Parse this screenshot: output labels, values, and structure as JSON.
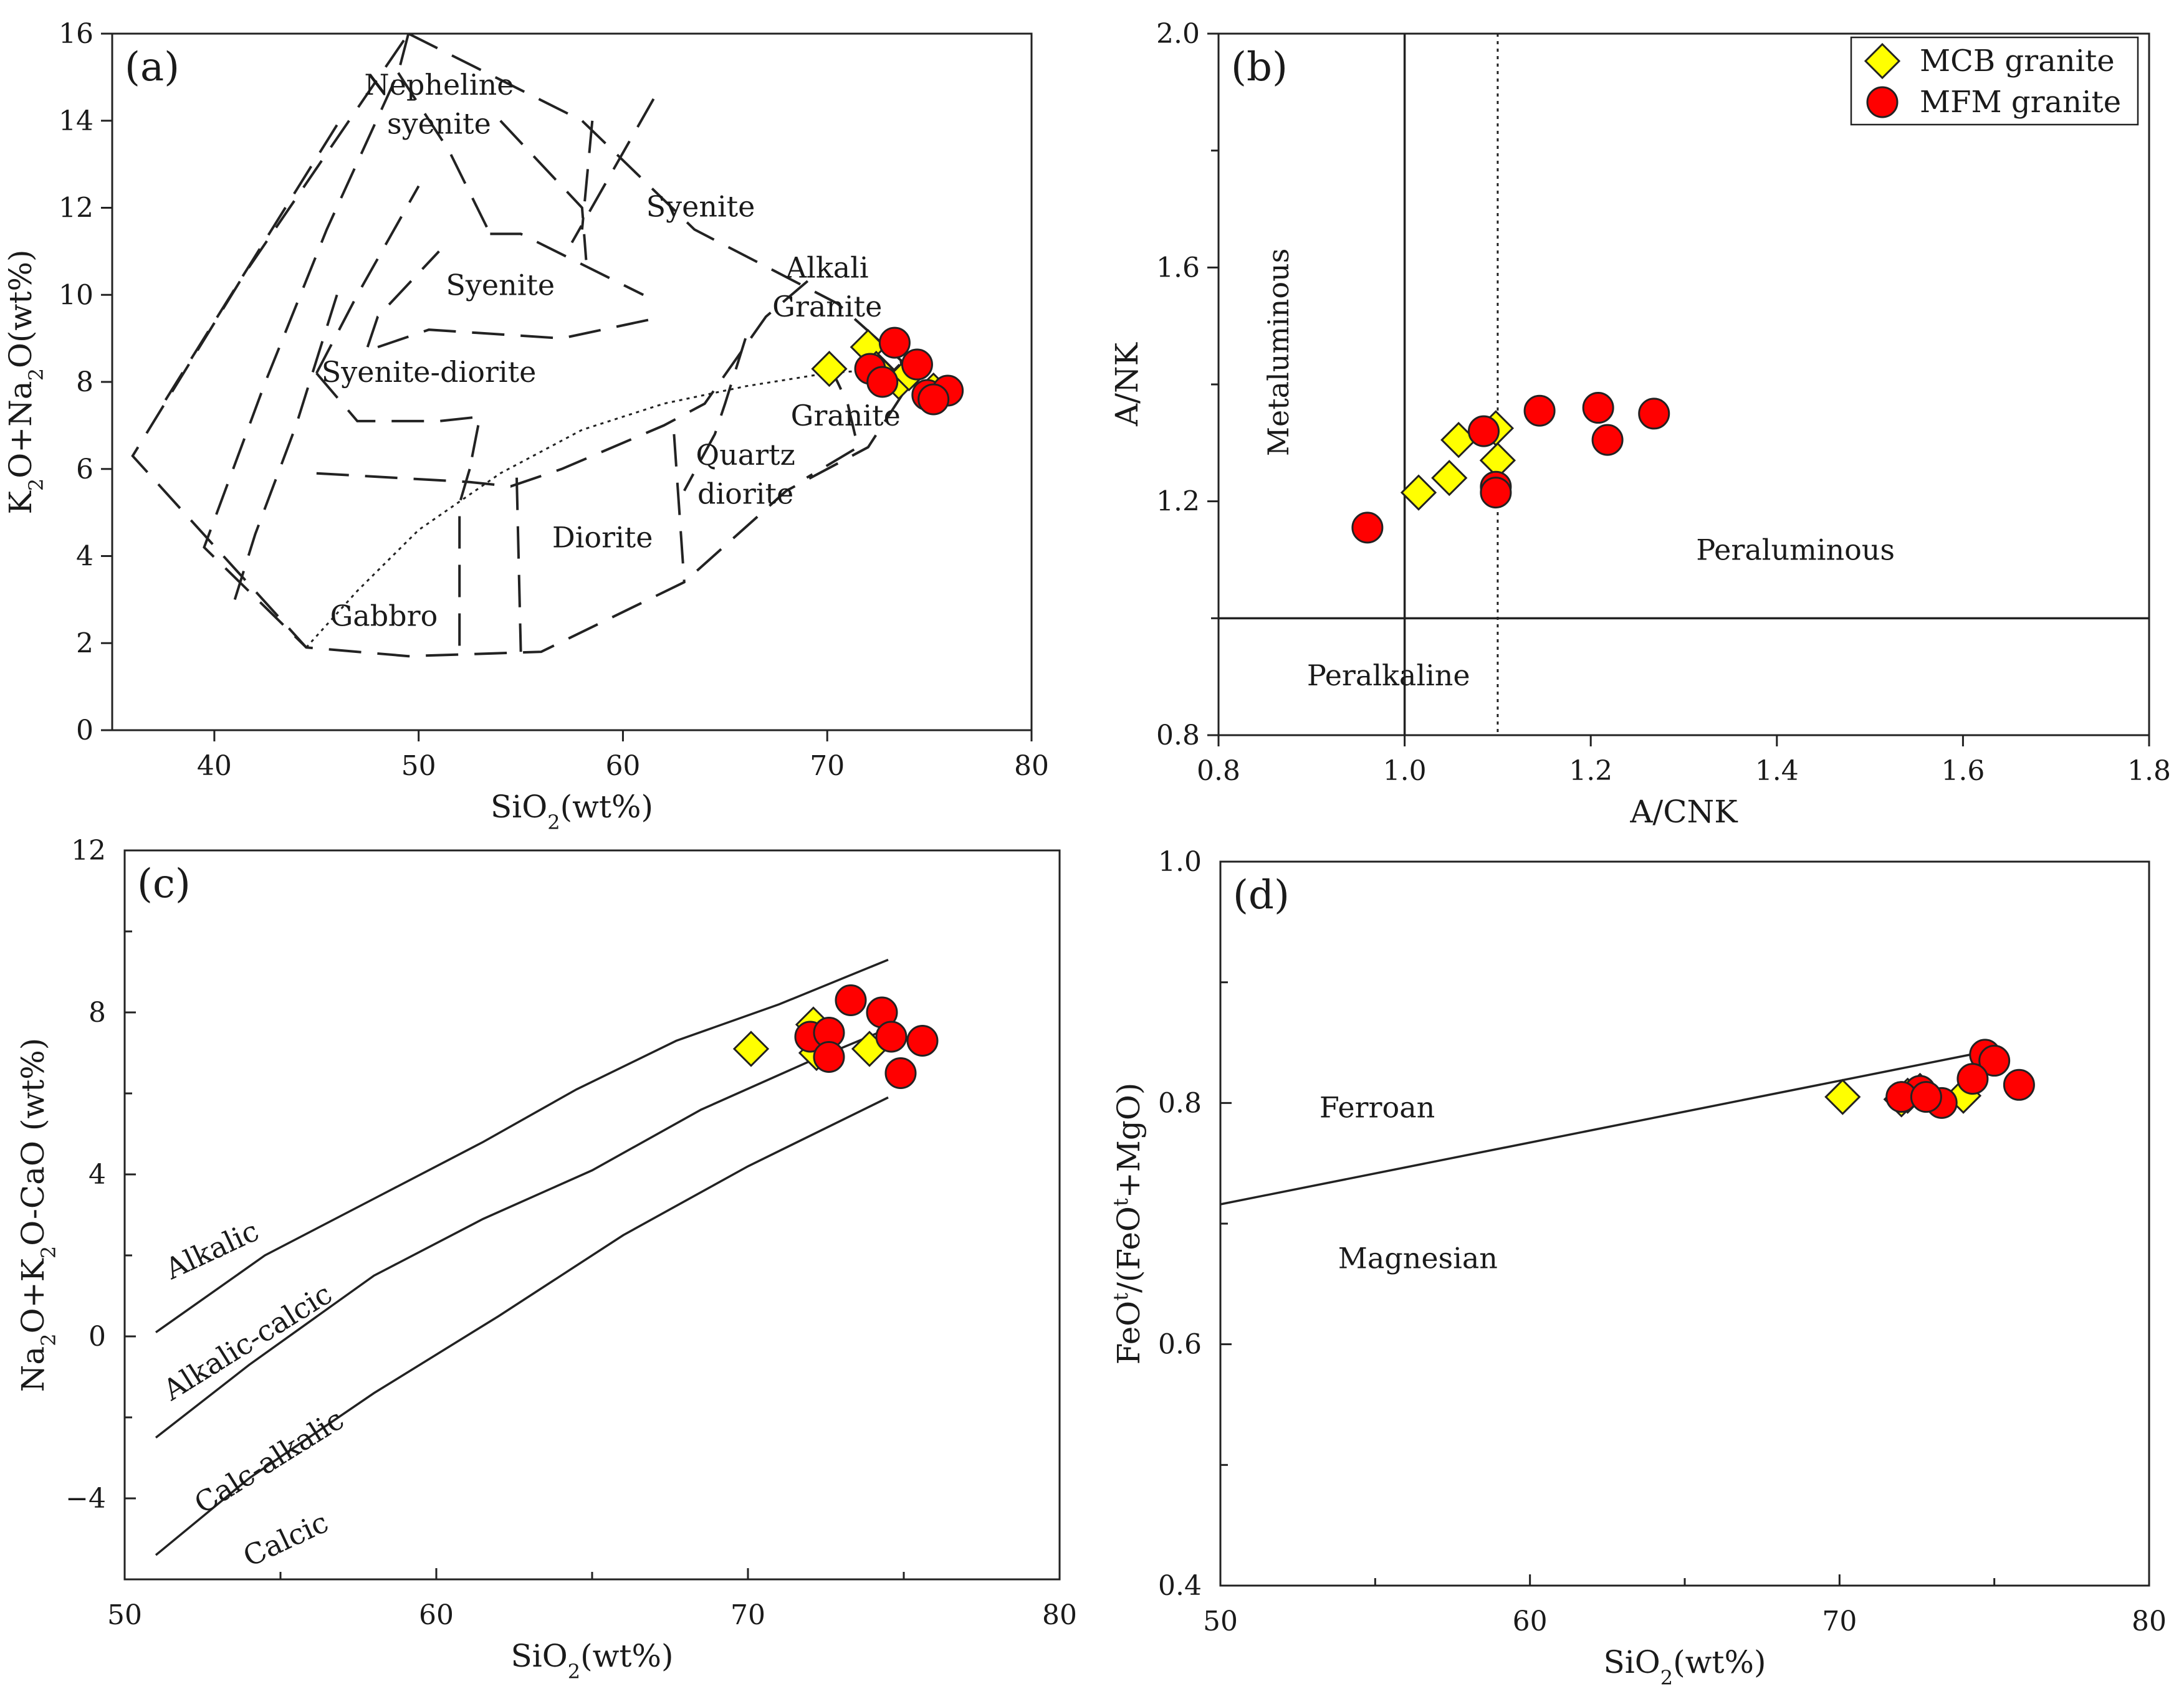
{
  "chart_data": [
    {
      "id": "a",
      "type": "scatter",
      "panel_label": "(a)",
      "xlabel_parts": [
        "SiO",
        "2",
        "(wt%)"
      ],
      "ylabel_parts": [
        "K",
        "2",
        "O+Na",
        "2",
        "O(wt%)"
      ],
      "xlim": [
        35,
        80
      ],
      "ylim": [
        0,
        16
      ],
      "xticks": [
        40,
        50,
        60,
        70,
        80
      ],
      "yticks": [
        0,
        2,
        4,
        6,
        8,
        10,
        12,
        14,
        16
      ],
      "fields": [
        {
          "name": "Nepheline",
          "x": 51.0,
          "y": 14.6
        },
        {
          "name": "syenite",
          "x": 51.0,
          "y": 13.7
        },
        {
          "name": "Syenite",
          "x": 63.8,
          "y": 11.8
        },
        {
          "name": "Syenite",
          "x": 54.0,
          "y": 10.0
        },
        {
          "name": "Alkali",
          "x": 70.0,
          "y": 10.4
        },
        {
          "name": "Granite",
          "x": 70.0,
          "y": 9.5
        },
        {
          "name": "Syenite-diorite",
          "x": 50.5,
          "y": 8.0
        },
        {
          "name": "Granite",
          "x": 70.9,
          "y": 7.0
        },
        {
          "name": "Quartz",
          "x": 66.0,
          "y": 6.1
        },
        {
          "name": "diorite",
          "x": 66.0,
          "y": 5.2
        },
        {
          "name": "Diorite",
          "x": 59.0,
          "y": 4.2
        },
        {
          "name": "Gabbro",
          "x": 48.3,
          "y": 2.4
        }
      ],
      "boundaries": [
        [
          [
            49.5,
            16.0
          ],
          [
            58.0,
            14.0
          ],
          [
            63.5,
            11.5
          ],
          [
            70.5,
            9.8
          ],
          [
            73.6,
            8.5
          ],
          [
            73.8,
            7.8
          ],
          [
            72.0,
            6.5
          ],
          [
            68.0,
            5.5
          ],
          [
            63.0,
            3.4
          ],
          [
            56.0,
            1.8
          ],
          [
            49.5,
            1.7
          ],
          [
            44.5,
            1.9
          ],
          [
            36.0,
            6.3
          ],
          [
            41.5,
            10.5
          ],
          [
            49.5,
            16.0
          ]
        ],
        [
          [
            49.5,
            16.0
          ],
          [
            49.0,
            15.1
          ],
          [
            45.5,
            11.5
          ],
          [
            42.5,
            8.0
          ],
          [
            39.5,
            4.2
          ],
          [
            44.5,
            1.9
          ]
        ],
        [
          [
            49.0,
            15.1
          ],
          [
            51.5,
            13.3
          ],
          [
            53.5,
            11.4
          ]
        ],
        [
          [
            46.0,
            13.9
          ],
          [
            37.5,
            7.5
          ]
        ],
        [
          [
            54.0,
            14.0
          ],
          [
            58.0,
            12.0
          ],
          [
            58.2,
            10.8
          ]
        ],
        [
          [
            58.5,
            14.0
          ],
          [
            58.0,
            11.5
          ]
        ],
        [
          [
            61.5,
            14.5
          ],
          [
            57.5,
            11.2
          ]
        ],
        [
          [
            53.5,
            11.4
          ],
          [
            55.0,
            11.4
          ],
          [
            61.0,
            10.0
          ]
        ],
        [
          [
            45.0,
            8.2
          ],
          [
            47.0,
            10.0
          ],
          [
            50.0,
            12.5
          ]
        ],
        [
          [
            47.5,
            8.8
          ],
          [
            48.0,
            9.5
          ],
          [
            51.0,
            11.0
          ]
        ],
        [
          [
            48.0,
            8.8
          ],
          [
            50.5,
            9.2
          ],
          [
            57.0,
            9.0
          ],
          [
            62.0,
            9.5
          ]
        ],
        [
          [
            46.0,
            10.0
          ],
          [
            44.0,
            7.0
          ],
          [
            42.0,
            4.5
          ],
          [
            41.0,
            3.0
          ]
        ],
        [
          [
            45.0,
            8.2
          ],
          [
            47.0,
            7.1
          ],
          [
            51.0,
            7.1
          ],
          [
            53.0,
            7.2
          ],
          [
            52.5,
            6.0
          ]
        ],
        [
          [
            45.0,
            5.9
          ],
          [
            52.5,
            5.7
          ],
          [
            54.5,
            5.6
          ],
          [
            57.0,
            6.0
          ],
          [
            62.0,
            7.0
          ],
          [
            64.0,
            7.5
          ],
          [
            67.0,
            9.5
          ],
          [
            69.5,
            10.5
          ]
        ],
        [
          [
            52.5,
            6.0
          ],
          [
            52.0,
            5.2
          ],
          [
            52.0,
            1.7
          ]
        ],
        [
          [
            54.8,
            5.8
          ],
          [
            55.0,
            1.8
          ]
        ],
        [
          [
            62.5,
            6.8
          ],
          [
            63.0,
            3.4
          ]
        ],
        [
          [
            66.0,
            9.0
          ],
          [
            65.0,
            7.5
          ],
          [
            64.5,
            6.8
          ],
          [
            63.0,
            5.5
          ]
        ],
        [
          [
            70.0,
            8.5
          ],
          [
            71.0,
            7.5
          ],
          [
            71.5,
            6.5
          ],
          [
            69.0,
            5.8
          ]
        ]
      ],
      "divider": [
        [
          44.5,
          1.9
        ],
        [
          47.0,
          3.2
        ],
        [
          50.0,
          4.6
        ],
        [
          54.0,
          5.9
        ],
        [
          58.0,
          6.9
        ],
        [
          62.0,
          7.5
        ],
        [
          66.0,
          7.9
        ],
        [
          70.0,
          8.2
        ],
        [
          73.0,
          8.3
        ]
      ],
      "series": [
        {
          "name": "MCB granite",
          "marker": "diamond",
          "color": "#ffff00",
          "points": [
            [
              70.1,
              8.3
            ],
            [
              72.0,
              8.8
            ],
            [
              72.4,
              8.3
            ],
            [
              72.8,
              8.1
            ],
            [
              73.5,
              8.0
            ],
            [
              74.0,
              8.2
            ],
            [
              75.2,
              7.8
            ]
          ]
        },
        {
          "name": "MFM granite",
          "marker": "circle",
          "color": "#ff0000",
          "points": [
            [
              73.3,
              8.9
            ],
            [
              72.1,
              8.3
            ],
            [
              72.7,
              8.0
            ],
            [
              74.4,
              8.4
            ],
            [
              74.9,
              7.7
            ],
            [
              75.9,
              7.8
            ],
            [
              75.2,
              7.6
            ]
          ]
        }
      ]
    },
    {
      "id": "b",
      "type": "scatter",
      "panel_label": "(b)",
      "xlabel_parts": [
        "A/CNK"
      ],
      "ylabel_parts": [
        "A/NK"
      ],
      "xlim": [
        0.8,
        1.8
      ],
      "ylim": [
        0.8,
        2.0
      ],
      "xticks": [
        "0.8",
        "1.0",
        "1.2",
        "1.4",
        "1.6",
        "1.8"
      ],
      "yticks": [
        "0.8",
        "1.2",
        "1.6",
        "2.0"
      ],
      "legend_position": "top-right",
      "fields": [
        {
          "name": "Metaluminous",
          "x": 0.875,
          "y": 1.455,
          "rotate": true
        },
        {
          "name": "Peraluminous",
          "x": 1.42,
          "y": 1.1
        },
        {
          "name": "Peralkaline",
          "x": 0.895,
          "y": 0.885
        }
      ],
      "lines": {
        "vertical_solid": 1.0,
        "vertical_dotted": 1.1,
        "horizontal_solid": 1.0
      },
      "series": [
        {
          "name": "MCB granite",
          "marker": "diamond",
          "color": "#ffff00",
          "points": [
            [
              1.015,
              1.215
            ],
            [
              1.048,
              1.24
            ],
            [
              1.058,
              1.305
            ],
            [
              1.098,
              1.325
            ],
            [
              1.1,
              1.27
            ]
          ]
        },
        {
          "name": "MFM granite",
          "marker": "circle",
          "color": "#ff0000",
          "points": [
            [
              0.96,
              1.155
            ],
            [
              1.085,
              1.32
            ],
            [
              1.098,
              1.225
            ],
            [
              1.098,
              1.215
            ],
            [
              1.145,
              1.355
            ],
            [
              1.208,
              1.36
            ],
            [
              1.218,
              1.305
            ],
            [
              1.268,
              1.35
            ]
          ]
        }
      ]
    },
    {
      "id": "c",
      "type": "scatter",
      "panel_label": "(c)",
      "xlabel_parts": [
        "SiO",
        "2",
        "(wt%)"
      ],
      "ylabel_parts": [
        "Na",
        "2",
        "O+K",
        "2",
        "O-CaO (wt%)"
      ],
      "xlim": [
        50,
        80
      ],
      "ylim": [
        -6,
        12
      ],
      "xticks": [
        50,
        60,
        70,
        80
      ],
      "yticks": [
        -4,
        0,
        4,
        8,
        12
      ],
      "fields": [
        {
          "name": "Alkalic",
          "x": 51.5,
          "y": 1.4,
          "angle": -25
        },
        {
          "name": "Alkalic-calcic",
          "x": 51.5,
          "y": -1.6,
          "angle": -32
        },
        {
          "name": "Calc-alkalic",
          "x": 52.5,
          "y": -4.4,
          "angle": -32
        },
        {
          "name": "Calcic",
          "x": 54.0,
          "y": -5.7,
          "angle": -25
        }
      ],
      "boundaries": [
        [
          [
            51.0,
            0.1
          ],
          [
            54.5,
            2.0
          ],
          [
            58.0,
            3.4
          ],
          [
            61.5,
            4.8
          ],
          [
            64.5,
            6.1
          ],
          [
            67.7,
            7.3
          ],
          [
            71.0,
            8.2
          ],
          [
            74.5,
            9.3
          ]
        ],
        [
          [
            51.0,
            -2.5
          ],
          [
            54.0,
            -0.7
          ],
          [
            58.0,
            1.5
          ],
          [
            61.5,
            2.9
          ],
          [
            65.0,
            4.1
          ],
          [
            68.5,
            5.6
          ],
          [
            72.0,
            6.8
          ],
          [
            74.5,
            7.6
          ]
        ],
        [
          [
            51.0,
            -5.4
          ],
          [
            54.0,
            -3.5
          ],
          [
            58.0,
            -1.4
          ],
          [
            62.0,
            0.5
          ],
          [
            66.0,
            2.5
          ],
          [
            70.0,
            4.2
          ],
          [
            74.5,
            5.9
          ]
        ]
      ],
      "series": [
        {
          "name": "MCB granite",
          "marker": "diamond",
          "color": "#ffff00",
          "points": [
            [
              70.1,
              7.1
            ],
            [
              72.1,
              7.7
            ],
            [
              72.4,
              7.4
            ],
            [
              72.2,
              7.0
            ],
            [
              73.9,
              7.1
            ]
          ]
        },
        {
          "name": "MFM granite",
          "marker": "circle",
          "color": "#ff0000",
          "points": [
            [
              73.3,
              8.3
            ],
            [
              74.3,
              8.0
            ],
            [
              72.0,
              7.4
            ],
            [
              72.6,
              7.5
            ],
            [
              72.6,
              6.9
            ],
            [
              74.6,
              7.4
            ],
            [
              75.6,
              7.3
            ],
            [
              74.9,
              6.5
            ]
          ]
        }
      ]
    },
    {
      "id": "d",
      "type": "scatter",
      "panel_label": "(d)",
      "xlabel_parts": [
        "SiO",
        "2",
        "(wt%)"
      ],
      "ylabel_parts": [
        "FeO",
        "t",
        "/(FeO",
        "t",
        "+MgO)"
      ],
      "xlim": [
        50,
        80
      ],
      "ylim": [
        0.4,
        1.0
      ],
      "xticks": [
        50,
        60,
        70,
        80
      ],
      "yticks": [
        "0.4",
        "0.6",
        "0.8",
        "1.0"
      ],
      "fields": [
        {
          "name": "Ferroan",
          "x": 53.2,
          "y": 0.788
        },
        {
          "name": "Magnesian",
          "x": 53.8,
          "y": 0.663
        }
      ],
      "boundaries": [
        [
          [
            50.0,
            0.716
          ],
          [
            75.0,
            0.844
          ]
        ]
      ],
      "series": [
        {
          "name": "MCB granite",
          "marker": "diamond",
          "color": "#ffff00",
          "points": [
            [
              70.1,
              0.805
            ],
            [
              72.0,
              0.803
            ],
            [
              72.2,
              0.806
            ],
            [
              72.6,
              0.81
            ],
            [
              74.0,
              0.806
            ]
          ]
        },
        {
          "name": "MFM granite",
          "marker": "circle",
          "color": "#ff0000",
          "points": [
            [
              74.7,
              0.84
            ],
            [
              75.0,
              0.835
            ],
            [
              75.8,
              0.815
            ],
            [
              74.3,
              0.82
            ],
            [
              73.3,
              0.8
            ],
            [
              72.6,
              0.81
            ],
            [
              72.0,
              0.805
            ],
            [
              72.8,
              0.805
            ]
          ]
        }
      ]
    }
  ],
  "legend": [
    {
      "name": "MCB granite",
      "marker": "diamond",
      "color": "#ffff00"
    },
    {
      "name": "MFM granite",
      "marker": "circle",
      "color": "#ff0000"
    }
  ]
}
